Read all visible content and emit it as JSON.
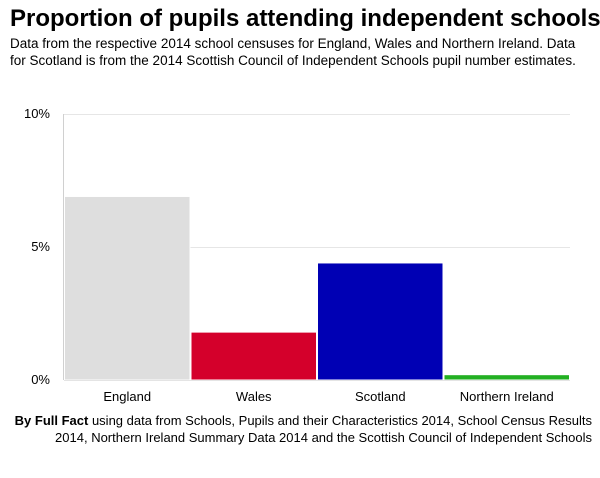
{
  "title": "Proportion of pupils attending independent schools",
  "subtitle": "Data from the respective 2014 school censuses for England, Wales and Northern Ireland. Data for Scotland is from the 2014 Scottish Council of Independent Schools pupil number estimates.",
  "source": {
    "lead": "By Full Fact",
    "rest": " using data from Schools, Pupils and their Characteristics 2014, School Census Results 2014, Northern Ireland Summary Data 2014 and the Scottish Council of Independent Schools"
  },
  "chart_data": {
    "type": "bar",
    "categories": [
      "England",
      "Wales",
      "Scotland",
      "Northern Ireland"
    ],
    "values": [
      6.9,
      1.8,
      4.4,
      0.2
    ],
    "colors": [
      "#dedede",
      "#d4002b",
      "#0000b4",
      "#22b022"
    ],
    "ylim": [
      0,
      10
    ],
    "yticks": [
      {
        "value": 10,
        "label": "10%"
      },
      {
        "value": 5,
        "label": "5%"
      },
      {
        "value": 0,
        "label": "0%"
      }
    ],
    "xlabel": "",
    "ylabel": "",
    "grid": true
  }
}
